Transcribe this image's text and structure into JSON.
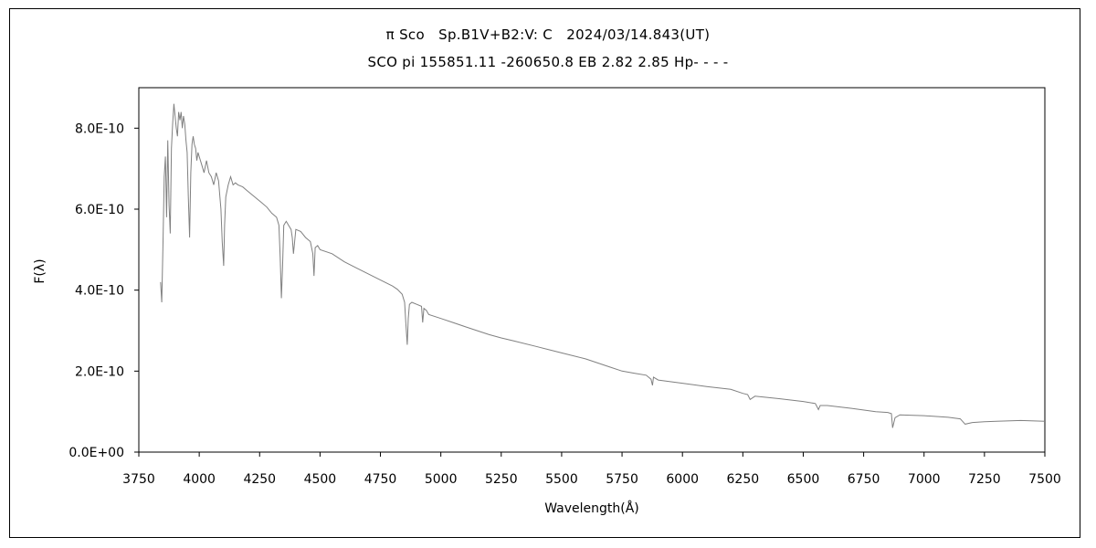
{
  "chart_data": {
    "type": "line",
    "title": "π Sco   Sp.B1V+B2:V: C   2024/03/14.843(UT)",
    "subtitle": "SCO pi 155851.11 -260650.8 EB 2.82 2.85 Hp- - - -",
    "xlabel": "Wavelength(Å)",
    "ylabel": "F(λ)",
    "xlim": [
      3750,
      7500
    ],
    "ylim": [
      0,
      9e-10
    ],
    "x_ticks": [
      3750,
      4000,
      4250,
      4500,
      4750,
      5000,
      5250,
      5500,
      5750,
      6000,
      6250,
      6500,
      6750,
      7000,
      7250,
      7500
    ],
    "x_tick_labels": [
      "3750",
      "4000",
      "4250",
      "4500",
      "4750",
      "5000",
      "5250",
      "5500",
      "5750",
      "6000",
      "6250",
      "6500",
      "6750",
      "7000",
      "7250",
      "7500"
    ],
    "y_ticks": [
      0,
      2e-10,
      4e-10,
      6e-10,
      8e-10
    ],
    "y_tick_labels": [
      "0.0E+00",
      "2.0E-10",
      "4.0E-10",
      "6.0E-10",
      "8.0E-10"
    ],
    "grid": false,
    "legend": "none",
    "line_color": "#808080",
    "series": [
      {
        "x": [
          3840,
          3845,
          3850,
          3855,
          3860,
          3865,
          3870,
          3875,
          3880,
          3885,
          3890,
          3895,
          3900,
          3905,
          3910,
          3915,
          3920,
          3925,
          3930,
          3935,
          3940,
          3945,
          3950,
          3955,
          3960,
          3965,
          3970,
          3975,
          3980,
          3985,
          3990,
          3995,
          4000,
          4010,
          4020,
          4030,
          4040,
          4050,
          4060,
          4070,
          4080,
          4090,
          4095,
          4101,
          4105,
          4110,
          4120,
          4130,
          4140,
          4150,
          4160,
          4180,
          4200,
          4220,
          4240,
          4260,
          4280,
          4300,
          4320,
          4330,
          4335,
          4340,
          4345,
          4350,
          4360,
          4370,
          4380,
          4385,
          4390,
          4400,
          4420,
          4440,
          4460,
          4470,
          4475,
          4480,
          4490,
          4500,
          4550,
          4600,
          4650,
          4700,
          4750,
          4800,
          4820,
          4840,
          4850,
          4855,
          4861,
          4865,
          4870,
          4880,
          4900,
          4920,
          4925,
          4930,
          4940,
          4950,
          5000,
          5050,
          5100,
          5150,
          5200,
          5250,
          5300,
          5400,
          5500,
          5600,
          5700,
          5750,
          5800,
          5850,
          5870,
          5876,
          5880,
          5900,
          6000,
          6100,
          6200,
          6250,
          6270,
          6280,
          6300,
          6400,
          6500,
          6550,
          6563,
          6570,
          6600,
          6700,
          6800,
          6850,
          6865,
          6870,
          6880,
          6900,
          7000,
          7100,
          7150,
          7170,
          7200,
          7250,
          7300,
          7400,
          7500
        ],
        "y": [
          4.2e-10,
          3.7e-10,
          5.2e-10,
          6.8e-10,
          7.3e-10,
          5.8e-10,
          7.7e-10,
          6.1e-10,
          5.4e-10,
          7.5e-10,
          8.1e-10,
          8.6e-10,
          8.3e-10,
          8e-10,
          7.8e-10,
          8.4e-10,
          8.2e-10,
          8.4e-10,
          8e-10,
          8.3e-10,
          8.1e-10,
          7.7e-10,
          7.4e-10,
          6.3e-10,
          5.3e-10,
          6.9e-10,
          7.6e-10,
          7.8e-10,
          7.6e-10,
          7.5e-10,
          7.2e-10,
          7.4e-10,
          7.3e-10,
          7.1e-10,
          6.9e-10,
          7.2e-10,
          6.9e-10,
          6.8e-10,
          6.6e-10,
          6.9e-10,
          6.7e-10,
          6e-10,
          5.2e-10,
          4.6e-10,
          5.6e-10,
          6.3e-10,
          6.6e-10,
          6.8e-10,
          6.6e-10,
          6.65e-10,
          6.6e-10,
          6.55e-10,
          6.45e-10,
          6.35e-10,
          6.25e-10,
          6.15e-10,
          6.05e-10,
          5.9e-10,
          5.8e-10,
          5.6e-10,
          4.8e-10,
          3.8e-10,
          4.6e-10,
          5.6e-10,
          5.7e-10,
          5.6e-10,
          5.5e-10,
          5.3e-10,
          4.9e-10,
          5.5e-10,
          5.45e-10,
          5.3e-10,
          5.2e-10,
          4.9e-10,
          4.35e-10,
          5.05e-10,
          5.1e-10,
          5e-10,
          4.9e-10,
          4.7e-10,
          4.55e-10,
          4.4e-10,
          4.25e-10,
          4.1e-10,
          4.02e-10,
          3.9e-10,
          3.7e-10,
          3.2e-10,
          2.65e-10,
          3.3e-10,
          3.65e-10,
          3.7e-10,
          3.65e-10,
          3.6e-10,
          3.2e-10,
          3.55e-10,
          3.5e-10,
          3.4e-10,
          3.3e-10,
          3.2e-10,
          3.1e-10,
          3e-10,
          2.9e-10,
          2.82e-10,
          2.75e-10,
          2.6e-10,
          2.45e-10,
          2.3e-10,
          2.1e-10,
          2e-10,
          1.95e-10,
          1.9e-10,
          1.8e-10,
          1.65e-10,
          1.85e-10,
          1.78e-10,
          1.7e-10,
          1.62e-10,
          1.55e-10,
          1.45e-10,
          1.42e-10,
          1.3e-10,
          1.38e-10,
          1.32e-10,
          1.25e-10,
          1.2e-10,
          1.05e-10,
          1.15e-10,
          1.15e-10,
          1.08e-10,
          1e-10,
          9.8e-11,
          9.5e-11,
          6e-11,
          8.5e-11,
          9.2e-11,
          9e-11,
          8.6e-11,
          8.2e-11,
          6.9e-11,
          7.3e-11,
          7.5e-11,
          7.6e-11,
          7.8e-11,
          7.6e-11
        ]
      }
    ]
  }
}
